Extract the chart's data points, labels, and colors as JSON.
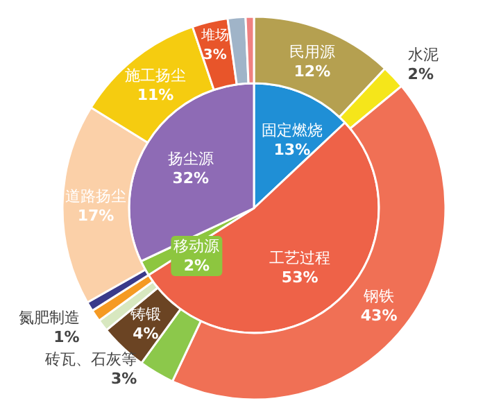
{
  "chart_data": [
    {
      "type": "pie",
      "categories": [
        "固定燃烧",
        "工艺过程",
        "移动源",
        "扬尘源"
      ],
      "values": [
        13,
        53,
        2,
        32
      ],
      "value_labels": [
        "13%",
        "53%",
        "2%",
        "32%"
      ],
      "colors": [
        "#1f8fd6",
        "#ee6248",
        "#8dc63f",
        "#8e6bb5"
      ]
    },
    {
      "type": "donut",
      "categories": [
        "民用源",
        "水泥",
        "钢铁",
        "砖瓦、石灰等",
        "铸锻",
        null,
        "氮肥制造",
        null,
        "道路扬尘",
        "施工扬尘",
        "堆场",
        null,
        null
      ],
      "values": [
        12,
        2,
        43,
        3,
        4,
        1,
        1,
        0.8,
        17,
        11,
        3,
        1.5,
        0.7
      ],
      "value_labels": [
        "12%",
        "2%",
        "43%",
        "3%",
        "4%",
        null,
        "1%",
        null,
        "17%",
        "11%",
        "3%",
        null,
        null
      ],
      "colors": [
        "#b5a050",
        "#f5e61a",
        "#f07055",
        "#8cc84b",
        "#6b4423",
        "#d8e8c0",
        "#f59a23",
        "#3a3a8a",
        "#fbd0a8",
        "#f5cc10",
        "#e8552a",
        "#a0b4c8",
        "#f08080"
      ]
    }
  ]
}
